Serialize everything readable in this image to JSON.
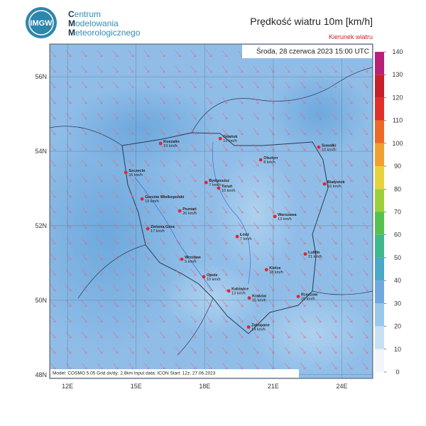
{
  "header": {
    "logo_text": "IMGW",
    "org": [
      "Centrum",
      "Modelowania",
      "Meteorologicznego"
    ],
    "title": "Prędkość wiatru 10m [km/h]",
    "subtitle": "Kierunek wiatru"
  },
  "map": {
    "timestamp": "Środa, 28 czerwca 2023 15:00 UTC",
    "footer": "Model: COSMO 5.05  Grid dx/dy: 2.8km  Input data: ICON  Start: 12z, 27.06.2023",
    "lon_range": [
      11.22,
      25.35
    ],
    "lat_range": [
      47.9,
      56.88
    ],
    "lon_ticks": [
      {
        "value": 12,
        "label": "12E"
      },
      {
        "value": 15,
        "label": "15E"
      },
      {
        "value": 18,
        "label": "18E"
      },
      {
        "value": 21,
        "label": "21E"
      },
      {
        "value": 24,
        "label": "24E"
      }
    ],
    "lat_ticks": [
      {
        "value": 56,
        "label": "56N"
      },
      {
        "value": 54,
        "label": "54N"
      },
      {
        "value": 52,
        "label": "52N"
      },
      {
        "value": 50,
        "label": "50N"
      },
      {
        "value": 48,
        "label": "48N"
      }
    ],
    "cities": [
      {
        "name": "Koszalin",
        "speed": "19 km/h",
        "lon": 16.07,
        "lat": 54.21
      },
      {
        "name": "Gdańsk",
        "speed": "13 km/h",
        "lon": 18.68,
        "lat": 54.34
      },
      {
        "name": "Suwałki",
        "speed": "10 km/h",
        "lon": 22.99,
        "lat": 54.11
      },
      {
        "name": "Olsztyn",
        "speed": "8 km/h",
        "lon": 20.45,
        "lat": 53.77
      },
      {
        "name": "Szczecin",
        "speed": "16 km/h",
        "lon": 14.55,
        "lat": 53.43
      },
      {
        "name": "Bydgoszcz",
        "speed": "7 km/h",
        "lon": 18.06,
        "lat": 53.16
      },
      {
        "name": "Toruń",
        "speed": "10 km/h",
        "lon": 18.61,
        "lat": 53.01
      },
      {
        "name": "Białystok",
        "speed": "16 km/h",
        "lon": 23.24,
        "lat": 53.12
      },
      {
        "name": "Gorzów Wielkopolski",
        "speed": "19 km/h",
        "lon": 15.26,
        "lat": 52.72
      },
      {
        "name": "Poznań",
        "speed": "20 km/h",
        "lon": 16.91,
        "lat": 52.4
      },
      {
        "name": "Warszawa",
        "speed": "13 km/h",
        "lon": 21.07,
        "lat": 52.25
      },
      {
        "name": "Zielona Góra",
        "speed": "17 km/h",
        "lon": 15.51,
        "lat": 51.92
      },
      {
        "name": "Łódź",
        "speed": "7 km/h",
        "lon": 19.42,
        "lat": 51.71
      },
      {
        "name": "Lublin",
        "speed": "21 km/h",
        "lon": 22.4,
        "lat": 51.24
      },
      {
        "name": "Wrocław",
        "speed": "5 km/h",
        "lon": 17.0,
        "lat": 51.1
      },
      {
        "name": "Opole",
        "speed": "10 km/h",
        "lon": 17.96,
        "lat": 50.63
      },
      {
        "name": "Kielce",
        "speed": "18 km/h",
        "lon": 20.7,
        "lat": 50.82
      },
      {
        "name": "Katowice",
        "speed": "13 km/h",
        "lon": 19.05,
        "lat": 50.25
      },
      {
        "name": "Kraków",
        "speed": "15 km/h",
        "lon": 19.95,
        "lat": 50.06
      },
      {
        "name": "Rzeszów",
        "speed": "20 km/h",
        "lon": 22.09,
        "lat": 50.1
      },
      {
        "name": "Zakopane",
        "speed": "14 km/h",
        "lon": 19.92,
        "lat": 49.28
      }
    ]
  },
  "colorbar": {
    "range": [
      0,
      140
    ],
    "ticks": [
      0,
      10,
      20,
      30,
      40,
      50,
      60,
      70,
      80,
      90,
      100,
      110,
      120,
      130,
      140
    ],
    "colors": [
      "#f2f6fb",
      "#c8e0f4",
      "#9ac8ec",
      "#6fa9df",
      "#4aa8c8",
      "#3fb88e",
      "#55c24f",
      "#9ccf3a",
      "#e6d23a",
      "#f0a030",
      "#ec6a25",
      "#e0302a",
      "#c8202a",
      "#b8207a"
    ]
  }
}
